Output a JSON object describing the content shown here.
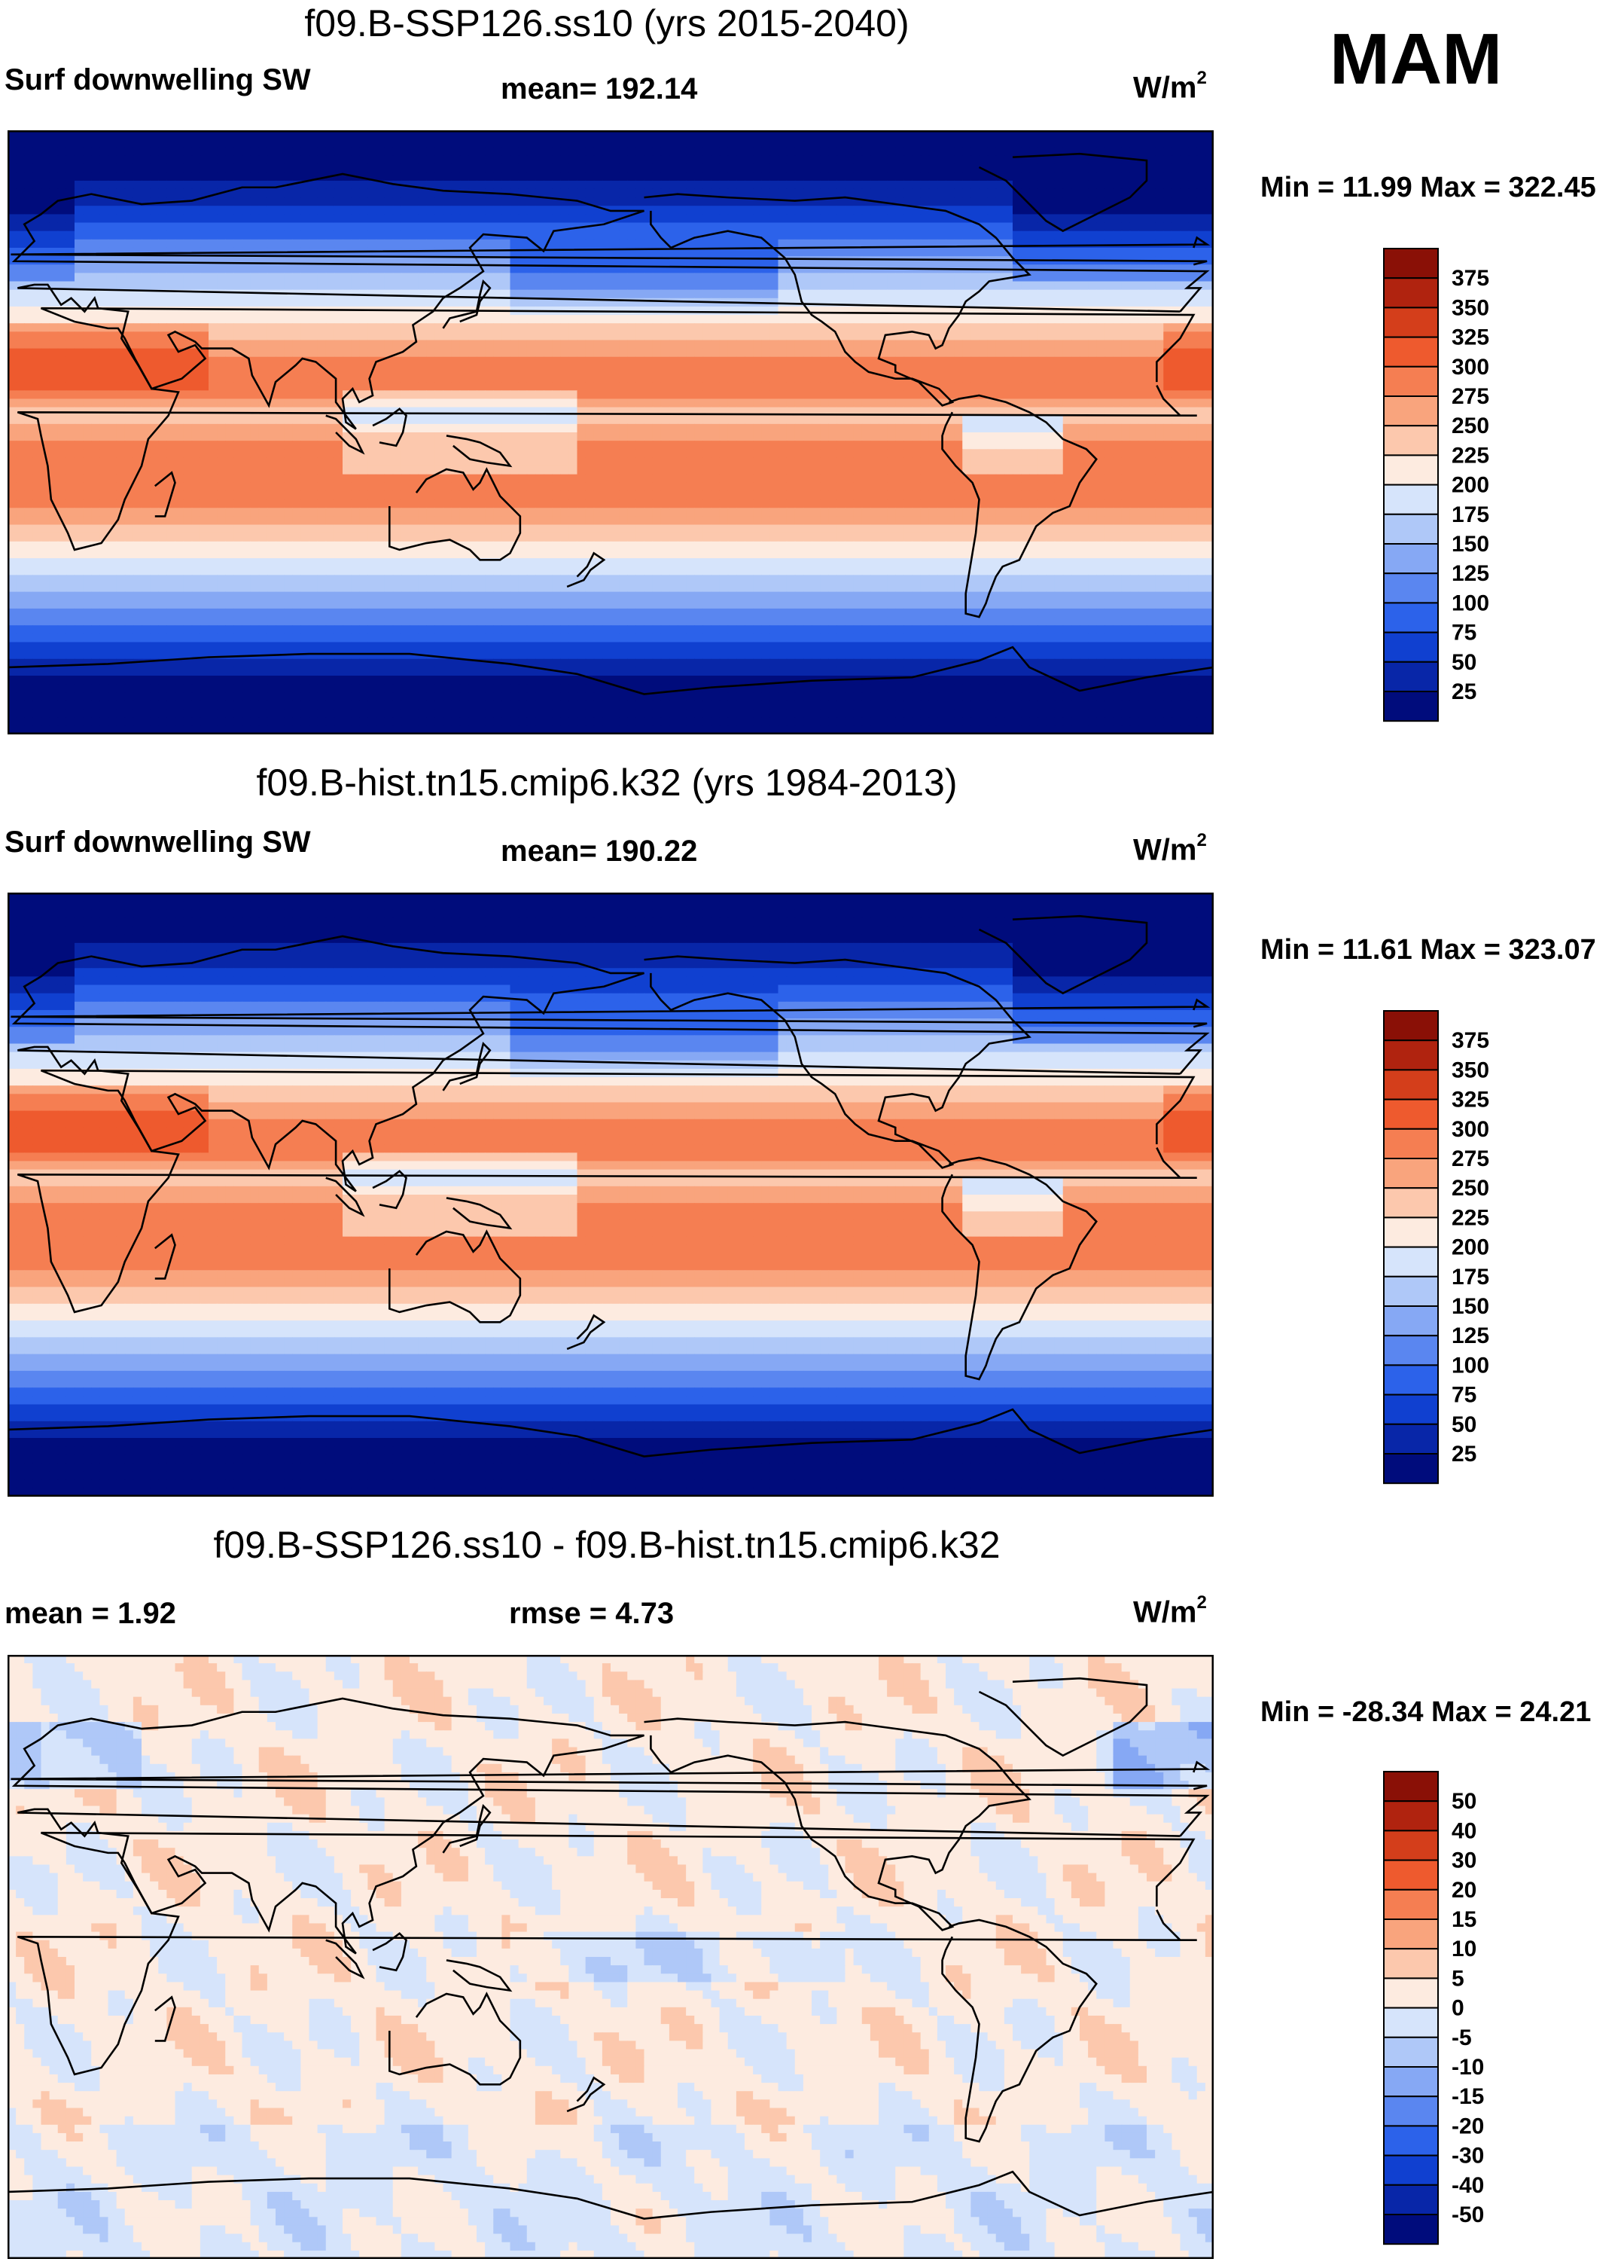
{
  "season_label": "MAM",
  "panels": [
    {
      "title": "f09.B-SSP126.ss10 (yrs 2015-2040)",
      "left_label": "Surf downwelling SW",
      "center_label": "mean= 192.14",
      "units_base": "W/m",
      "units_sup": "2",
      "minmax": "Min =  11.99 Max = 322.45",
      "kind": "absolute"
    },
    {
      "title": "f09.B-hist.tn15.cmip6.k32 (yrs 1984-2013)",
      "left_label": "Surf downwelling SW",
      "center_label": "mean= 190.22",
      "units_base": "W/m",
      "units_sup": "2",
      "minmax": "Min =  11.61 Max = 323.07",
      "kind": "absolute"
    },
    {
      "title": "f09.B-SSP126.ss10 - f09.B-hist.tn15.cmip6.k32",
      "left_label": "mean =    1.92",
      "center_label": "rmse =    4.73",
      "units_base": "W/m",
      "units_sup": "2",
      "minmax": "Min = -28.34 Max =  24.21",
      "kind": "difference"
    }
  ],
  "colors": {
    "absolute": [
      "#000c7c",
      "#0826a8",
      "#1040d0",
      "#2c62ea",
      "#5a86f0",
      "#86a8f4",
      "#afc8f8",
      "#d6e4fb",
      "#fdebe0",
      "#fcc8ad",
      "#f9a47d",
      "#f57e52",
      "#ee5a2e",
      "#d43e1b",
      "#b0230f",
      "#8a1006"
    ],
    "difference": [
      "#000c7c",
      "#0826a8",
      "#1040d0",
      "#2c62ea",
      "#5a86f0",
      "#86a8f4",
      "#afc8f8",
      "#d6e4fb",
      "#fdebe0",
      "#fcc8ad",
      "#f9a47d",
      "#f57e52",
      "#ee5a2e",
      "#d43e1b",
      "#b0230f",
      "#8a1006"
    ]
  },
  "chart_data": [
    {
      "type": "heatmap",
      "title": "f09.B-SSP126.ss10 (yrs 2015-2040)",
      "variable": "Surf downwelling SW",
      "units": "W/m2",
      "mean": 192.14,
      "min": 11.99,
      "max": 322.45,
      "colorbar_levels": [
        375,
        350,
        325,
        300,
        275,
        250,
        225,
        200,
        175,
        150,
        125,
        100,
        75,
        50,
        25
      ]
    },
    {
      "type": "heatmap",
      "title": "f09.B-hist.tn15.cmip6.k32 (yrs 1984-2013)",
      "variable": "Surf downwelling SW",
      "units": "W/m2",
      "mean": 190.22,
      "min": 11.61,
      "max": 323.07,
      "colorbar_levels": [
        375,
        350,
        325,
        300,
        275,
        250,
        225,
        200,
        175,
        150,
        125,
        100,
        75,
        50,
        25
      ]
    },
    {
      "type": "heatmap",
      "title": "f09.B-SSP126.ss10 - f09.B-hist.tn15.cmip6.k32",
      "units": "W/m2",
      "mean": 1.92,
      "rmse": 4.73,
      "min": -28.34,
      "max": 24.21,
      "colorbar_levels": [
        "50",
        "40",
        "30",
        "20",
        "15",
        "10",
        "5",
        "0",
        "-5",
        "-10",
        "-15",
        "-20",
        "-30",
        "-40",
        "-50"
      ]
    }
  ]
}
